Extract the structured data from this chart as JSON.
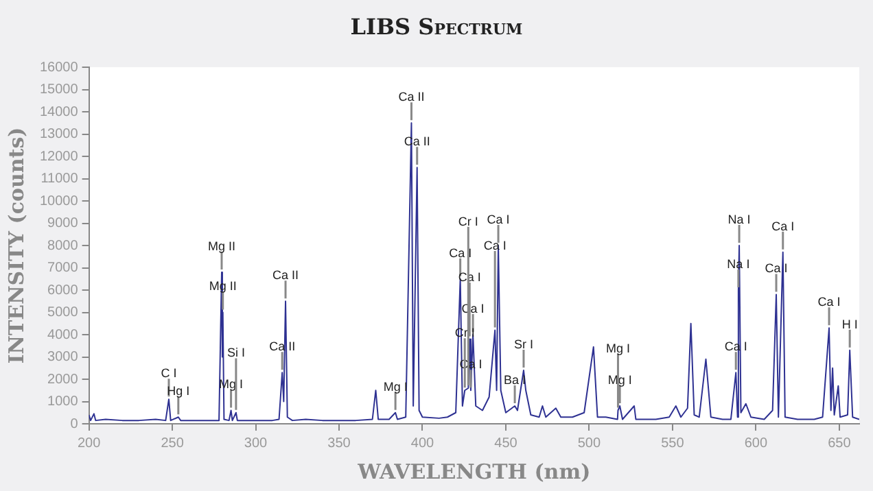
{
  "chart_data": {
    "type": "line",
    "title": "LIBS Spectrum",
    "xlabel": "WAVELENGTH (nm)",
    "ylabel": "INTENSITY (counts)",
    "x": [
      200,
      201,
      203,
      204,
      210,
      220,
      230,
      240,
      246,
      247.9,
      249,
      253.6,
      255,
      265,
      270,
      278,
      279.6,
      280,
      280.3,
      281,
      284,
      285.2,
      286,
      288.2,
      289,
      300,
      310,
      314,
      315.9,
      316.8,
      317.9,
      319,
      322,
      330,
      340,
      350,
      360,
      370,
      372,
      373.5,
      380,
      383.8,
      385,
      390,
      393.4,
      394.5,
      396.8,
      398,
      400,
      410,
      415,
      420,
      422.7,
      424,
      425.4,
      427.5,
      428.3,
      429,
      430.3,
      432,
      436,
      440,
      443.5,
      444.5,
      445.5,
      447,
      450,
      455.4,
      457,
      460.7,
      462,
      465,
      470,
      472,
      474,
      480,
      483,
      490,
      497,
      502.6,
      505,
      510,
      517,
      517.3,
      518.4,
      520,
      527,
      528,
      535,
      540,
      548,
      552,
      555,
      559,
      561,
      563,
      566,
      570,
      573,
      580,
      585,
      588,
      589,
      589.5,
      590,
      591,
      594,
      597,
      605,
      610,
      612.2,
      613.5,
      616.2,
      617.5,
      625,
      635,
      640,
      643.9,
      645,
      646,
      647,
      649.4,
      650.5,
      655,
      656.3,
      658,
      662
    ],
    "series": [
      {
        "color": "#2e3192",
        "values": [
          400,
          150,
          450,
          150,
          200,
          150,
          150,
          200,
          150,
          1100,
          150,
          300,
          150,
          150,
          150,
          150,
          6800,
          3000,
          5000,
          200,
          150,
          600,
          150,
          500,
          150,
          150,
          150,
          200,
          2300,
          1000,
          5500,
          300,
          150,
          200,
          150,
          150,
          150,
          200,
          1500,
          200,
          200,
          500,
          200,
          300,
          13500,
          800,
          11500,
          600,
          300,
          250,
          300,
          500,
          6500,
          800,
          1500,
          1600,
          3800,
          1500,
          4000,
          800,
          600,
          1200,
          4200,
          1500,
          8000,
          1500,
          500,
          800,
          600,
          2400,
          1500,
          400,
          300,
          800,
          300,
          700,
          300,
          300,
          500,
          3450,
          300,
          300,
          200,
          600,
          800,
          200,
          800,
          200,
          200,
          200,
          300,
          800,
          300,
          700,
          4500,
          400,
          300,
          2900,
          300,
          200,
          200,
          2300,
          300,
          6000,
          8000,
          500,
          900,
          300,
          200,
          600,
          5800,
          300,
          7700,
          300,
          200,
          200,
          300,
          4300,
          600,
          2500,
          400,
          1700,
          300,
          400,
          3300,
          300,
          200
        ]
      }
    ],
    "xlim": [
      200,
      662
    ],
    "xticks": [
      200,
      250,
      300,
      350,
      400,
      450,
      500,
      550,
      600,
      650
    ],
    "ylim": [
      0,
      16000
    ],
    "yticks": [
      0,
      1000,
      2000,
      3000,
      4000,
      5000,
      6000,
      7000,
      8000,
      9000,
      10000,
      11000,
      12000,
      13000,
      14000,
      15000,
      16000
    ],
    "grid": false,
    "legend": false,
    "marker": "none",
    "line_style": "solid",
    "annotations": [
      {
        "text": "C I",
        "x": 247.9,
        "y": 1100
      },
      {
        "text": "Hg I",
        "x": 253.6,
        "y": 300
      },
      {
        "text": "Mg II",
        "x": 279.6,
        "y": 6800
      },
      {
        "text": "Mg II",
        "x": 280.3,
        "y": 5000
      },
      {
        "text": "Mg I",
        "x": 285.2,
        "y": 600
      },
      {
        "text": "Si I",
        "x": 288.2,
        "y": 500
      },
      {
        "text": "Ca II",
        "x": 317.9,
        "y": 5500
      },
      {
        "text": "Ca II",
        "x": 315.9,
        "y": 2300
      },
      {
        "text": "Mg I",
        "x": 383.8,
        "y": 500
      },
      {
        "text": "Ca II",
        "x": 393.4,
        "y": 13500
      },
      {
        "text": "Ca II",
        "x": 396.8,
        "y": 11500
      },
      {
        "text": "Ca I",
        "x": 422.7,
        "y": 6500
      },
      {
        "text": "Ca I",
        "x": 430.3,
        "y": 4000
      },
      {
        "text": "Ca I",
        "x": 428.3,
        "y": 3800
      },
      {
        "text": "Ca I",
        "x": 429,
        "y": 1500
      },
      {
        "text": "Ca I",
        "x": 445.5,
        "y": 8000
      },
      {
        "text": "Ca I",
        "x": 443.5,
        "y": 4200
      },
      {
        "text": "Cr I",
        "x": 425.4,
        "y": 1500
      },
      {
        "text": "Cr I",
        "x": 427.5,
        "y": 1600
      },
      {
        "text": "Ba I",
        "x": 455.4,
        "y": 800
      },
      {
        "text": "Sr I",
        "x": 460.7,
        "y": 2400
      },
      {
        "text": "Mg I",
        "x": 518.4,
        "y": 800
      },
      {
        "text": "Mg I",
        "x": 517.3,
        "y": 600
      },
      {
        "text": "Na I",
        "x": 590,
        "y": 8000
      },
      {
        "text": "Na I",
        "x": 589.5,
        "y": 6000
      },
      {
        "text": "Ca I",
        "x": 588,
        "y": 2300
      },
      {
        "text": "Ca I",
        "x": 616.2,
        "y": 7700
      },
      {
        "text": "Ca I",
        "x": 612.2,
        "y": 5800
      },
      {
        "text": "Ca I",
        "x": 643.9,
        "y": 4300
      },
      {
        "text": "H I",
        "x": 656.3,
        "y": 3300
      }
    ]
  }
}
